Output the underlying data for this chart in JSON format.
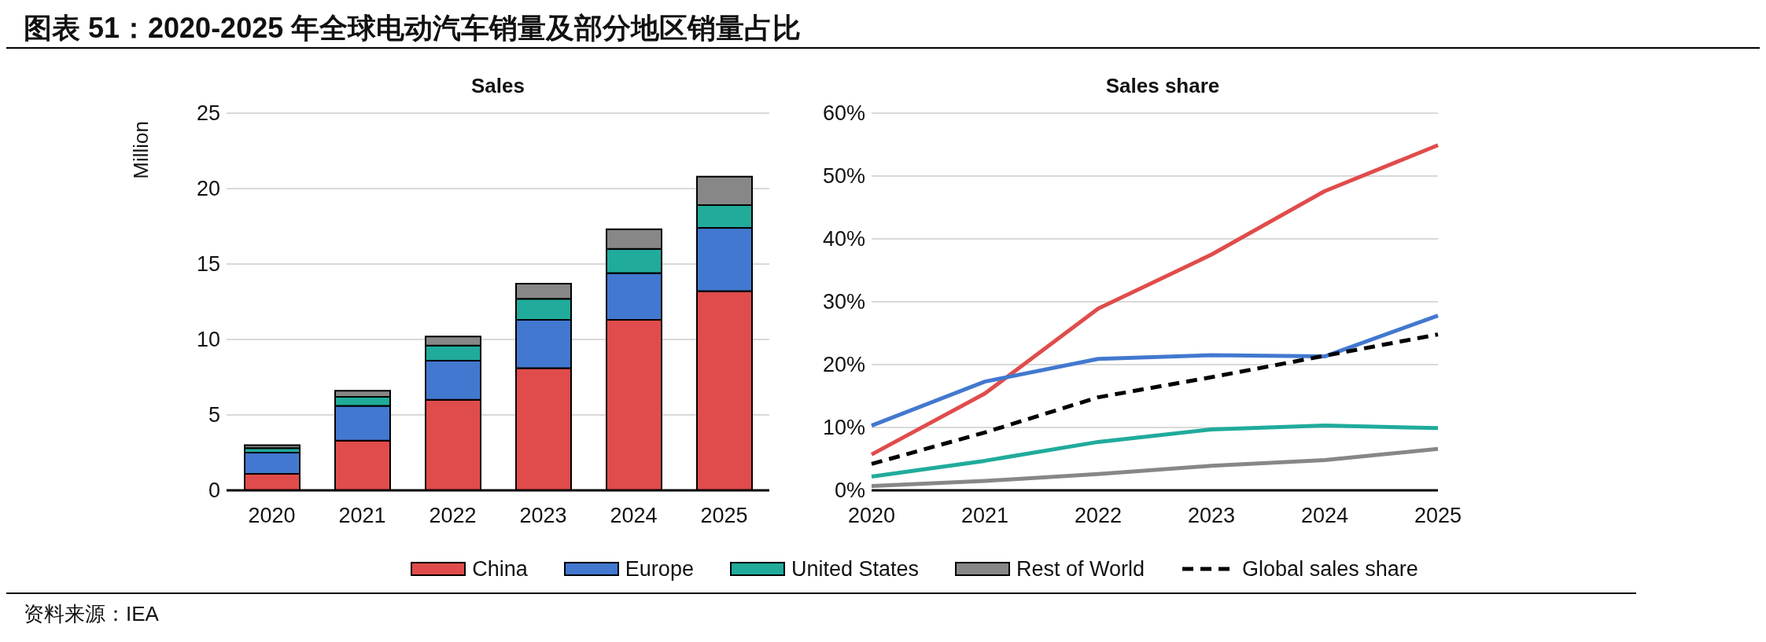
{
  "chart_data": [
    {
      "type": "other",
      "title": "图表 51：2020-2025 年全球电动汽车销量及部分地区销量占比",
      "annotations": [
        "资料来源：IEA"
      ]
    },
    {
      "type": "bar",
      "title": "Sales",
      "ylabel": "Million",
      "categories": [
        "2020",
        "2021",
        "2022",
        "2023",
        "2024",
        "2025"
      ],
      "stacked": true,
      "ylim": [
        0,
        25
      ],
      "yticks": [
        0,
        5,
        10,
        15,
        20,
        25
      ],
      "grid": "y",
      "legend": "bottom",
      "series": [
        {
          "name": "China",
          "color": "#e04c4b",
          "values": [
            1.1,
            3.3,
            6.0,
            8.1,
            11.3,
            13.2
          ]
        },
        {
          "name": "Europe",
          "color": "#4278cf",
          "values": [
            1.4,
            2.3,
            2.6,
            3.2,
            3.1,
            4.2
          ]
        },
        {
          "name": "United States",
          "color": "#20ab9b",
          "values": [
            0.3,
            0.6,
            1.0,
            1.4,
            1.6,
            1.5
          ]
        },
        {
          "name": "Rest of World",
          "color": "#878787",
          "values": [
            0.2,
            0.4,
            0.6,
            1.0,
            1.3,
            1.9
          ]
        }
      ]
    },
    {
      "type": "line",
      "title": "Sales share",
      "categories": [
        "2020",
        "2021",
        "2022",
        "2023",
        "2024",
        "2025"
      ],
      "ylim": [
        0,
        60
      ],
      "yticks": [
        {
          "value": 0,
          "label": "0%"
        },
        {
          "value": 10,
          "label": "10%"
        },
        {
          "value": 20,
          "label": "20%"
        },
        {
          "value": 30,
          "label": "30%"
        },
        {
          "value": 40,
          "label": "40%"
        },
        {
          "value": 50,
          "label": "50%"
        },
        {
          "value": 60,
          "label": "60%"
        }
      ],
      "grid": "y",
      "legend": "bottom",
      "marker": "none",
      "series": [
        {
          "name": "China",
          "color": "#e04c4b",
          "values": [
            5.7,
            15.4,
            28.9,
            37.5,
            47.6,
            54.9
          ]
        },
        {
          "name": "Europe",
          "color": "#4278cf",
          "values": [
            10.3,
            17.3,
            20.9,
            21.5,
            21.3,
            27.8
          ]
        },
        {
          "name": "United States",
          "color": "#20ab9b",
          "values": [
            2.2,
            4.7,
            7.7,
            9.7,
            10.3,
            9.9
          ]
        },
        {
          "name": "Rest of World",
          "color": "#878787",
          "values": [
            0.7,
            1.5,
            2.6,
            3.9,
            4.8,
            6.6
          ]
        },
        {
          "name": "Global sales share",
          "color": "#000000",
          "line_style": "dashed",
          "values": [
            4.2,
            9.2,
            14.8,
            18.0,
            21.4,
            24.8
          ]
        }
      ]
    }
  ]
}
